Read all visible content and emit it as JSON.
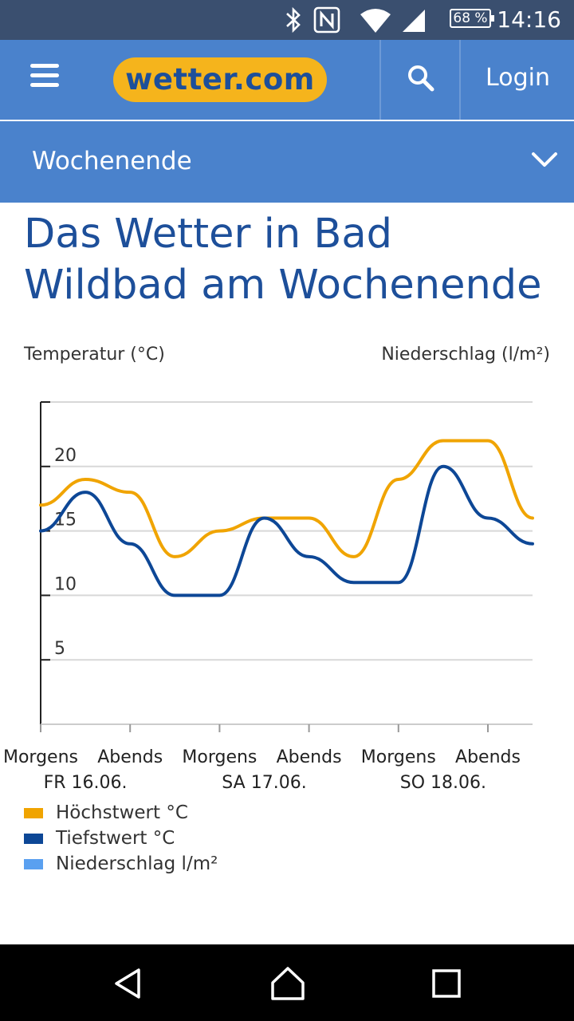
{
  "status_bar": {
    "battery": "68 %",
    "time": "14:16",
    "icons": [
      "bluetooth-icon",
      "nfc-icon",
      "wifi-icon",
      "signal-icon",
      "battery-icon"
    ]
  },
  "header": {
    "logo_text": "wetter.com",
    "login_label": "Login",
    "icons": [
      "hamburger-menu-icon",
      "search-icon"
    ]
  },
  "subnav": {
    "label": "Wochenende",
    "icon": "chevron-down-icon"
  },
  "page": {
    "title": "Das Wetter in Bad Wildbad am Wochenende"
  },
  "colors": {
    "accent_blue": "#4a82cc",
    "title_blue": "#1d4f9a",
    "logo_yellow": "#f5b41c",
    "max_line": "#f0a400",
    "min_line": "#0d4796",
    "precip": "#5aa0f0"
  },
  "chart_data": {
    "type": "line",
    "ylabel_left": "Temperatur (°C)",
    "ylabel_right": "Niederschlag (l/m²)",
    "yticks": [
      5,
      10,
      15,
      20
    ],
    "ylim": [
      0,
      25
    ],
    "grid": true,
    "x_period_labels": [
      "Morgens",
      "Abends",
      "Morgens",
      "Abends",
      "Morgens",
      "Abends"
    ],
    "x_day_labels": [
      "FR 16.06.",
      "SA 17.06.",
      "SO 18.06."
    ],
    "series": [
      {
        "name": "Höchstwert °C",
        "color": "#f0a400",
        "values": [
          17,
          19,
          18,
          13,
          15,
          16,
          16,
          13,
          19,
          22,
          22,
          16
        ]
      },
      {
        "name": "Tiefstwert °C",
        "color": "#0d4796",
        "values": [
          15,
          18,
          14,
          10,
          10,
          16,
          13,
          11,
          11,
          20,
          16,
          14
        ]
      },
      {
        "name": "Niederschlag l/m²",
        "color": "#5aa0f0",
        "values": []
      }
    ]
  }
}
